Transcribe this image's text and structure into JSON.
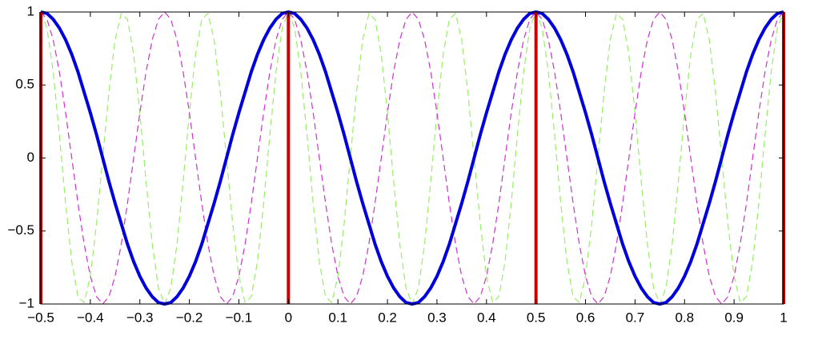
{
  "chart_data": {
    "type": "line",
    "x": [
      -0.5,
      -0.4875,
      -0.475,
      -0.4625,
      -0.45,
      -0.4375,
      -0.425,
      -0.4125,
      -0.4,
      -0.3875,
      -0.375,
      -0.3625,
      -0.35,
      -0.3375,
      -0.325,
      -0.3125,
      -0.3,
      -0.2875,
      -0.275,
      -0.2625,
      -0.25,
      -0.2375,
      -0.225,
      -0.2125,
      -0.2,
      -0.1875,
      -0.175,
      -0.1625,
      -0.15,
      -0.1375,
      -0.125,
      -0.1125,
      -0.1,
      -0.0875,
      -0.075,
      -0.0625,
      -0.05,
      -0.0375,
      -0.025,
      -0.0125,
      0,
      0.0125,
      0.025,
      0.0375,
      0.05,
      0.0625,
      0.075,
      0.0875,
      0.1,
      0.1125,
      0.125,
      0.1375,
      0.15,
      0.1625,
      0.175,
      0.1875,
      0.2,
      0.2125,
      0.225,
      0.2375,
      0.25,
      0.2625,
      0.275,
      0.2875,
      0.3,
      0.3125,
      0.325,
      0.3375,
      0.35,
      0.3625,
      0.375,
      0.3875,
      0.4,
      0.4125,
      0.425,
      0.4375,
      0.45,
      0.4625,
      0.475,
      0.4875,
      0.5,
      0.5125,
      0.525,
      0.5375,
      0.55,
      0.5625,
      0.575,
      0.5875,
      0.6,
      0.6125,
      0.625,
      0.6375,
      0.65,
      0.6625,
      0.675,
      0.6875,
      0.7,
      0.7125,
      0.725,
      0.7375,
      0.75,
      0.7625,
      0.775,
      0.7875,
      0.8,
      0.8125,
      0.825,
      0.8375,
      0.85,
      0.8625,
      0.875,
      0.8875,
      0.9,
      0.9125,
      0.925,
      0.9375,
      0.95,
      0.9625,
      0.975,
      0.9875,
      1
    ],
    "series": [
      {
        "color": "#99ee66",
        "dashed": true,
        "width": 1.2,
        "values": [
          1,
          0.89,
          0.59,
          0.16,
          -0.31,
          -0.71,
          -0.95,
          -0.99,
          -0.81,
          -0.45,
          0,
          0.45,
          0.81,
          0.99,
          0.95,
          0.71,
          0.31,
          -0.16,
          -0.59,
          -0.89,
          -1,
          -0.89,
          -0.59,
          -0.16,
          0.31,
          0.71,
          0.95,
          0.99,
          0.81,
          0.45,
          0,
          -0.45,
          -0.81,
          -0.99,
          -0.95,
          -0.71,
          -0.31,
          0.16,
          0.59,
          0.89,
          1,
          0.89,
          0.59,
          0.16,
          -0.31,
          -0.71,
          -0.95,
          -0.99,
          -0.81,
          -0.45,
          0,
          0.45,
          0.81,
          0.99,
          0.95,
          0.71,
          0.31,
          -0.16,
          -0.59,
          -0.89,
          -1,
          -0.89,
          -0.59,
          -0.16,
          0.31,
          0.71,
          0.95,
          0.99,
          0.81,
          0.45,
          0,
          -0.45,
          -0.81,
          -0.99,
          -0.95,
          -0.71,
          -0.31,
          0.16,
          0.59,
          0.89,
          1,
          0.89,
          0.59,
          0.16,
          -0.31,
          -0.71,
          -0.95,
          -0.99,
          -0.81,
          -0.45,
          0,
          0.45,
          0.81,
          0.99,
          0.95,
          0.71,
          0.31,
          -0.16,
          -0.59,
          -0.89,
          -1,
          -0.89,
          -0.59,
          -0.16,
          0.31,
          0.71,
          0.95,
          0.99,
          0.81,
          0.45,
          0,
          -0.45,
          -0.81,
          -0.99,
          -0.95,
          -0.71,
          -0.31,
          0.16,
          0.59,
          0.89,
          1
        ]
      },
      {
        "color": "#cc33cc",
        "dashed": true,
        "width": 1.2,
        "values": [
          1,
          0.95,
          0.81,
          0.59,
          0.31,
          0,
          -0.31,
          -0.59,
          -0.81,
          -0.95,
          -1,
          -0.95,
          -0.81,
          -0.59,
          -0.31,
          0,
          0.31,
          0.59,
          0.81,
          0.95,
          1,
          0.95,
          0.81,
          0.59,
          0.31,
          0,
          -0.31,
          -0.59,
          -0.81,
          -0.95,
          -1,
          -0.95,
          -0.81,
          -0.59,
          -0.31,
          0,
          0.31,
          0.59,
          0.81,
          0.95,
          1,
          0.95,
          0.81,
          0.59,
          0.31,
          0,
          -0.31,
          -0.59,
          -0.81,
          -0.95,
          -1,
          -0.95,
          -0.81,
          -0.59,
          -0.31,
          0,
          0.31,
          0.59,
          0.81,
          0.95,
          1,
          0.95,
          0.81,
          0.59,
          0.31,
          0,
          -0.31,
          -0.59,
          -0.81,
          -0.95,
          -1,
          -0.95,
          -0.81,
          -0.59,
          -0.31,
          0,
          0.31,
          0.59,
          0.81,
          0.95,
          1,
          0.95,
          0.81,
          0.59,
          0.31,
          0,
          -0.31,
          -0.59,
          -0.81,
          -0.95,
          -1,
          -0.95,
          -0.81,
          -0.59,
          -0.31,
          0,
          0.31,
          0.59,
          0.81,
          0.95,
          1,
          0.95,
          0.81,
          0.59,
          0.31,
          0,
          -0.31,
          -0.59,
          -0.81,
          -0.95,
          -1,
          -0.95,
          -0.81,
          -0.59,
          -0.31,
          0,
          0.31,
          0.59,
          0.81,
          0.95,
          1
        ]
      },
      {
        "color": "#0000dd",
        "dashed": false,
        "width": 4,
        "values": [
          1,
          0.99,
          0.95,
          0.89,
          0.81,
          0.71,
          0.59,
          0.45,
          0.31,
          0.16,
          0,
          -0.16,
          -0.31,
          -0.45,
          -0.59,
          -0.71,
          -0.81,
          -0.89,
          -0.95,
          -0.99,
          -1,
          -0.99,
          -0.95,
          -0.89,
          -0.81,
          -0.71,
          -0.59,
          -0.45,
          -0.31,
          -0.16,
          0,
          0.16,
          0.31,
          0.45,
          0.59,
          0.71,
          0.81,
          0.89,
          0.95,
          0.99,
          1,
          0.99,
          0.95,
          0.89,
          0.81,
          0.71,
          0.59,
          0.45,
          0.31,
          0.16,
          0,
          -0.16,
          -0.31,
          -0.45,
          -0.59,
          -0.71,
          -0.81,
          -0.89,
          -0.95,
          -0.99,
          -1,
          -0.99,
          -0.95,
          -0.89,
          -0.81,
          -0.71,
          -0.59,
          -0.45,
          -0.31,
          -0.16,
          0,
          0.16,
          0.31,
          0.45,
          0.59,
          0.71,
          0.81,
          0.89,
          0.95,
          0.99,
          1,
          0.99,
          0.95,
          0.89,
          0.81,
          0.71,
          0.59,
          0.45,
          0.31,
          0.16,
          0,
          -0.16,
          -0.31,
          -0.45,
          -0.59,
          -0.71,
          -0.81,
          -0.89,
          -0.95,
          -0.99,
          -1,
          -0.99,
          -0.95,
          -0.89,
          -0.81,
          -0.71,
          -0.59,
          -0.45,
          -0.31,
          -0.16,
          0,
          0.16,
          0.31,
          0.45,
          0.59,
          0.71,
          0.81,
          0.89,
          0.95,
          0.99,
          1
        ]
      },
      {
        "color": "#cc0000",
        "stem": true,
        "width": 4,
        "x": [
          -0.5,
          0,
          0.5,
          1
        ],
        "values": [
          1,
          1,
          1,
          1
        ]
      }
    ],
    "xlim": [
      -0.5,
      1
    ],
    "xticks": [
      {
        "value": -0.5,
        "label": "−0.5"
      },
      {
        "value": -0.4,
        "label": "−0.4"
      },
      {
        "value": -0.3,
        "label": "−0.3"
      },
      {
        "value": -0.2,
        "label": "−0.2"
      },
      {
        "value": -0.1,
        "label": "−0.1"
      },
      0,
      0.1,
      0.2,
      0.3,
      0.4,
      0.5,
      0.6,
      0.7,
      0.8,
      0.9,
      1
    ],
    "ylim": [
      -1,
      1
    ],
    "yticks": [
      {
        "value": -1,
        "label": "−1"
      },
      {
        "value": -0.5,
        "label": "−0.5"
      },
      0,
      0.5,
      1
    ],
    "grid": false
  }
}
